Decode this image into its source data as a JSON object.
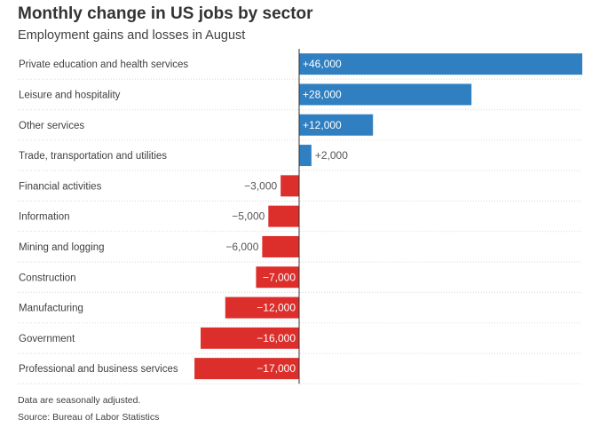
{
  "chart_data": {
    "type": "bar",
    "orientation": "horizontal",
    "title": "Monthly change in US jobs by sector",
    "subtitle": "Employment gains and losses in August",
    "categories": [
      "Private education and health services",
      "Leisure and hospitality",
      "Other services",
      "Trade, transportation and utilities",
      "Financial activities",
      "Information",
      "Mining and logging",
      "Construction",
      "Manufacturing",
      "Government",
      "Professional and business services"
    ],
    "values": [
      46000,
      28000,
      12000,
      2000,
      -3000,
      -5000,
      -6000,
      -7000,
      -12000,
      -16000,
      -17000
    ],
    "value_labels": [
      "+46,000",
      "+28,000",
      "+12,000",
      "+2,000",
      "−3,000",
      "−5,000",
      "−6,000",
      "−7,000",
      "−12,000",
      "−16,000",
      "−17,000"
    ],
    "xlim": [
      -17000,
      46000
    ],
    "xlabel": "",
    "ylabel": "",
    "grid": false,
    "colors": {
      "positive": "#2f7fc1",
      "negative": "#dc2e2b",
      "axis": "#333333",
      "divider": "#d9d9d9",
      "label_inside": "#ffffff",
      "label_outside": "#555555"
    }
  },
  "notes": {
    "adjusted": "Data are seasonally adjusted.",
    "source": "Source: Bureau of Labor Statistics"
  }
}
